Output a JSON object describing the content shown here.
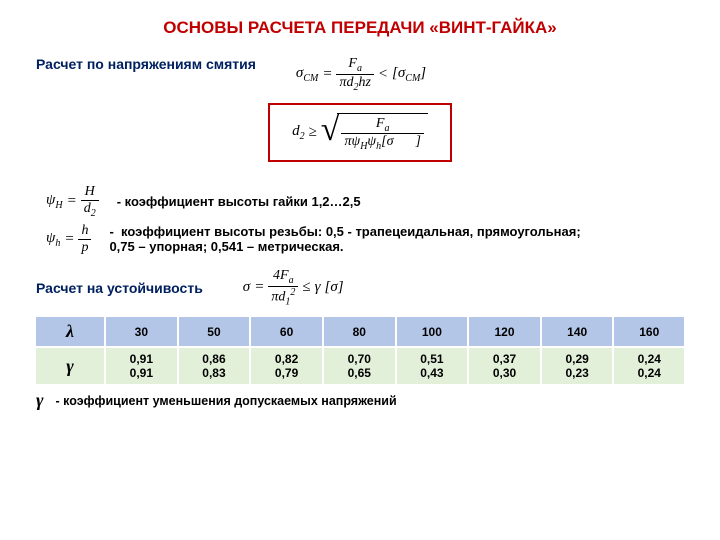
{
  "title": "ОСНОВЫ РАСЧЕТА ПЕРЕДАЧИ «ВИНТ-ГАЙКА»",
  "section1": {
    "heading": "Расчет по напряжениям смятия",
    "sigma_label": "σ",
    "sigma_sub": "СМ",
    "Fa": "F",
    "Fa_sub": "a",
    "pi": "π",
    "d2": "d",
    "d2_sub": "2",
    "hz": "hz",
    "lt": "<",
    "bracket_sigma": "[σ",
    "bracket_close": "]"
  },
  "boxed": {
    "d2": "d",
    "d2_sub": "2",
    "ge": "≥",
    "Fa": "F",
    "Fa_sub": "a",
    "pi": "π",
    "psiH": "ψ",
    "psiH_sub": "H",
    "psih": "ψ",
    "psih_sub": "h",
    "sigma": "[σ",
    "close": "]"
  },
  "defs": {
    "psiH_sym": "ψ",
    "psiH_sub": "H",
    "psiH_lhs_num": "H",
    "psiH_lhs_den": "d",
    "psiH_lhs_den_sub": "2",
    "psiH_text": "- коэффициент высоты гайки 1,2…2,5",
    "psih_sym": "ψ",
    "psih_sub": "h",
    "psih_lhs_num": "h",
    "psih_lhs_den": "p",
    "psih_bullet": "-",
    "psih_text": "коэффициент высоты резьбы: 0,5  - трапецеидальная, прямоугольная; 0,75 – упорная; 0,541 – метрическая."
  },
  "section2": {
    "heading": "Расчет на устойчивость",
    "sigma": "σ",
    "eq": "=",
    "four": "4",
    "Fa": "F",
    "Fa_sub": "a",
    "pi": "π",
    "d1": "d",
    "d1_sub": "1",
    "sq": "2",
    "le": "≤",
    "gamma": "γ",
    "bracket_sigma": "[σ]",
    "footnote_sym": "γ",
    "footnote_text": "- коэффициент уменьшения допускаемых напряжений"
  },
  "table": {
    "header_row_color": "#b4c6e7",
    "body_row_color": "#e2efd9",
    "border_color": "#ffffff",
    "lambda_sym": "λ",
    "gamma_sym": "γ",
    "lambda_values": [
      "30",
      "50",
      "60",
      "80",
      "100",
      "120",
      "140",
      "160"
    ],
    "gamma_rows": [
      [
        "0,91",
        "0,86",
        "0,82",
        "0,70",
        "0,51",
        "0,37",
        "0,29",
        "0,24"
      ],
      [
        "0,91",
        "0,83",
        "0,79",
        "0,65",
        "0,43",
        "0,30",
        "0,23",
        "0,24"
      ]
    ]
  }
}
